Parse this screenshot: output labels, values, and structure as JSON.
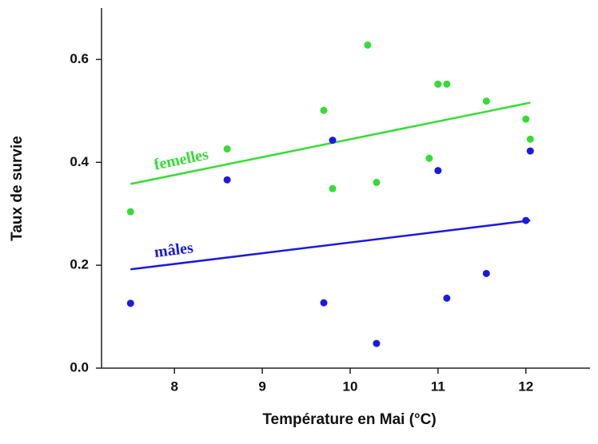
{
  "chart_data": {
    "type": "scatter",
    "x_label": "Température en Mai (°C)",
    "y_label": "Taux de survie",
    "xlim": [
      7.17,
      12.73
    ],
    "ylim": [
      0,
      0.7
    ],
    "xticks": [
      8,
      9,
      10,
      11,
      12
    ],
    "yticks": [
      {
        "value": 0,
        "label": "0.0"
      },
      0.2,
      0.4,
      0.6
    ],
    "grid": false,
    "series": [
      {
        "name": "femelles",
        "color": "#33dd33",
        "x": [
          7.5,
          8.6,
          9.7,
          9.8,
          10.2,
          10.3,
          10.9,
          11.0,
          11.1,
          11.55,
          12.0,
          12.05
        ],
        "values": [
          0.304,
          0.426,
          0.501,
          0.349,
          0.628,
          0.361,
          0.408,
          0.552,
          0.552,
          0.519,
          0.484,
          0.445
        ],
        "fit": {
          "x": [
            7.5,
            12.05
          ],
          "values": [
            0.358,
            0.516
          ]
        }
      },
      {
        "name": "mâles",
        "color": "#1a1adf",
        "x": [
          7.5,
          8.6,
          9.7,
          9.8,
          10.3,
          11.0,
          11.1,
          11.55,
          12.0,
          12.05
        ],
        "values": [
          0.126,
          0.366,
          0.127,
          0.443,
          0.048,
          0.384,
          0.136,
          0.184,
          0.287,
          0.422
        ],
        "fit": {
          "x": [
            7.5,
            12.05
          ],
          "values": [
            0.192,
            0.287
          ]
        }
      }
    ]
  }
}
